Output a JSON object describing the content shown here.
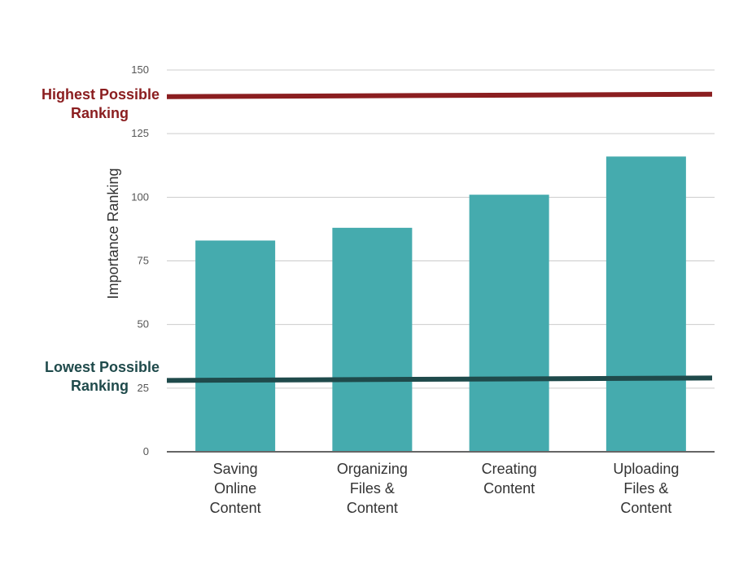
{
  "chart_data": {
    "type": "bar",
    "title": "",
    "xlabel": "",
    "ylabel": "Importance Ranking",
    "ylim": [
      0,
      150
    ],
    "yticks": [
      0,
      25,
      50,
      75,
      100,
      125,
      150
    ],
    "grid": true,
    "categories": [
      [
        "Saving",
        "Online",
        "Content"
      ],
      [
        "Organizing",
        "Files &",
        "Content"
      ],
      [
        "Creating",
        "Content"
      ],
      [
        "Uploading",
        "Files &",
        "Content"
      ]
    ],
    "values": [
      83,
      88,
      101,
      116
    ],
    "bar_color": "#45ABAE",
    "reference_lines": [
      {
        "name": "highest",
        "label_lines": [
          "Highest Possible",
          "Ranking"
        ],
        "value": 140,
        "color": "#8B1E20"
      },
      {
        "name": "lowest",
        "label_lines": [
          "Lowest Possible",
          "Ranking"
        ],
        "value": 28.5,
        "color": "#1F4A4B"
      }
    ]
  }
}
